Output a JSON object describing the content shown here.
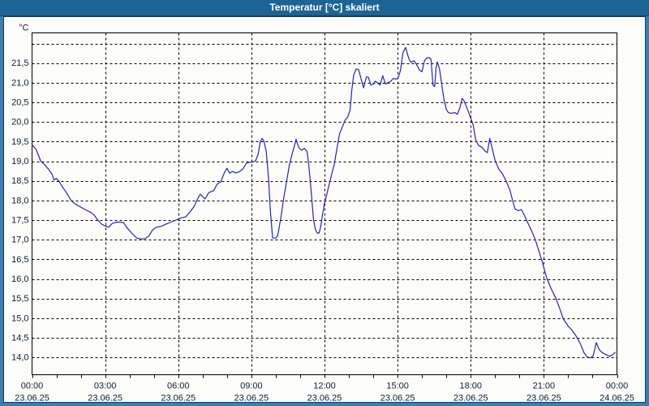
{
  "window": {
    "title": "Temperatur [°C] skaliert"
  },
  "colors": {
    "titlebar_bg": "#1D6496",
    "titlebar_text": "#FFFFFF",
    "frame_bg": "#3D7DB0",
    "frame_line": "#0F3E63",
    "panel_bg": "#FCFDF9",
    "plot_border": "#000000",
    "grid": "#000000",
    "label_text": "#0B1E33",
    "series_line": "#2424B4"
  },
  "chart_data": {
    "type": "line",
    "title": "Temperatur [°C] skaliert",
    "ylabel": "°C",
    "xlabel": "",
    "grid": "dashed",
    "legend": "none",
    "xlim_hours": [
      0,
      24
    ],
    "ylim": [
      13.56,
      22.27
    ],
    "y_ticks": [
      {
        "v": 22.0,
        "label": ""
      },
      {
        "v": 21.5,
        "label": "21,5"
      },
      {
        "v": 21.0,
        "label": "21,0"
      },
      {
        "v": 20.5,
        "label": "20,5"
      },
      {
        "v": 20.0,
        "label": "20,0"
      },
      {
        "v": 19.5,
        "label": "19,5"
      },
      {
        "v": 19.0,
        "label": "19,0"
      },
      {
        "v": 18.5,
        "label": "18,5"
      },
      {
        "v": 18.0,
        "label": "18,0"
      },
      {
        "v": 17.5,
        "label": "17,5"
      },
      {
        "v": 17.0,
        "label": "17,0"
      },
      {
        "v": 16.5,
        "label": "16,5"
      },
      {
        "v": 16.0,
        "label": "16,0"
      },
      {
        "v": 15.5,
        "label": "15,5"
      },
      {
        "v": 15.0,
        "label": "15,0"
      },
      {
        "v": 14.5,
        "label": "14,5"
      },
      {
        "v": 14.0,
        "label": "14,0"
      }
    ],
    "x_ticks": [
      {
        "h": 0,
        "time": "00:00",
        "date": "23.06.25"
      },
      {
        "h": 3,
        "time": "03:00",
        "date": "23.06.25"
      },
      {
        "h": 6,
        "time": "06:00",
        "date": "23.06.25"
      },
      {
        "h": 9,
        "time": "09:00",
        "date": "23.06.25"
      },
      {
        "h": 12,
        "time": "12:00",
        "date": "23.06.25"
      },
      {
        "h": 15,
        "time": "15:00",
        "date": "23.06.25"
      },
      {
        "h": 18,
        "time": "18:00",
        "date": "23.06.25"
      },
      {
        "h": 21,
        "time": "21:00",
        "date": "23.06.25"
      },
      {
        "h": 24,
        "time": "00:00",
        "date": "24.06.25"
      }
    ],
    "minor_tick_every_hours": 1,
    "series": [
      {
        "name": "Temperatur",
        "unit": "°C",
        "points": [
          [
            0,
            19.42
          ],
          [
            0.17,
            19.3
          ],
          [
            0.36,
            19.0
          ],
          [
            0.5,
            18.92
          ],
          [
            0.67,
            18.8
          ],
          [
            0.83,
            18.66
          ],
          [
            0.9,
            18.52
          ],
          [
            1.0,
            18.56
          ],
          [
            1.1,
            18.5
          ],
          [
            1.25,
            18.34
          ],
          [
            1.4,
            18.21
          ],
          [
            1.6,
            18.0
          ],
          [
            1.75,
            17.92
          ],
          [
            2.0,
            17.83
          ],
          [
            2.2,
            17.76
          ],
          [
            2.4,
            17.7
          ],
          [
            2.55,
            17.63
          ],
          [
            2.7,
            17.5
          ],
          [
            2.85,
            17.4
          ],
          [
            3.0,
            17.35
          ],
          [
            3.15,
            17.32
          ],
          [
            3.3,
            17.42
          ],
          [
            3.5,
            17.45
          ],
          [
            3.75,
            17.44
          ],
          [
            3.9,
            17.3
          ],
          [
            4.1,
            17.16
          ],
          [
            4.3,
            17.04
          ],
          [
            4.5,
            17.02
          ],
          [
            4.65,
            17.03
          ],
          [
            4.8,
            17.1
          ],
          [
            4.95,
            17.25
          ],
          [
            5.1,
            17.32
          ],
          [
            5.3,
            17.34
          ],
          [
            5.5,
            17.4
          ],
          [
            5.7,
            17.45
          ],
          [
            5.9,
            17.5
          ],
          [
            6.1,
            17.55
          ],
          [
            6.3,
            17.58
          ],
          [
            6.5,
            17.72
          ],
          [
            6.65,
            17.85
          ],
          [
            6.8,
            18.05
          ],
          [
            6.9,
            18.16
          ],
          [
            7.0,
            18.1
          ],
          [
            7.1,
            18.04
          ],
          [
            7.25,
            18.2
          ],
          [
            7.45,
            18.25
          ],
          [
            7.6,
            18.42
          ],
          [
            7.75,
            18.48
          ],
          [
            7.9,
            18.72
          ],
          [
            8.0,
            18.82
          ],
          [
            8.1,
            18.7
          ],
          [
            8.25,
            18.74
          ],
          [
            8.35,
            18.7
          ],
          [
            8.5,
            18.73
          ],
          [
            8.65,
            18.8
          ],
          [
            8.78,
            18.94
          ],
          [
            8.9,
            18.97
          ],
          [
            9.05,
            18.98
          ],
          [
            9.17,
            19.01
          ],
          [
            9.28,
            19.18
          ],
          [
            9.36,
            19.49
          ],
          [
            9.44,
            19.58
          ],
          [
            9.52,
            19.5
          ],
          [
            9.61,
            19.25
          ],
          [
            9.7,
            18.6
          ],
          [
            9.78,
            17.73
          ],
          [
            9.87,
            17.05
          ],
          [
            10.0,
            17.04
          ],
          [
            10.08,
            17.1
          ],
          [
            10.22,
            17.6
          ],
          [
            10.33,
            18.07
          ],
          [
            10.45,
            18.5
          ],
          [
            10.56,
            18.9
          ],
          [
            10.67,
            19.18
          ],
          [
            10.78,
            19.42
          ],
          [
            10.83,
            19.56
          ],
          [
            10.94,
            19.35
          ],
          [
            11.06,
            19.28
          ],
          [
            11.17,
            19.33
          ],
          [
            11.28,
            19.25
          ],
          [
            11.33,
            19.04
          ],
          [
            11.4,
            18.6
          ],
          [
            11.47,
            18.1
          ],
          [
            11.55,
            17.5
          ],
          [
            11.63,
            17.25
          ],
          [
            11.7,
            17.17
          ],
          [
            11.78,
            17.17
          ],
          [
            11.85,
            17.35
          ],
          [
            11.92,
            17.65
          ],
          [
            12.0,
            17.93
          ],
          [
            12.08,
            18.12
          ],
          [
            12.17,
            18.35
          ],
          [
            12.28,
            18.63
          ],
          [
            12.4,
            18.92
          ],
          [
            12.5,
            19.28
          ],
          [
            12.62,
            19.7
          ],
          [
            12.75,
            19.9
          ],
          [
            12.85,
            20.05
          ],
          [
            12.95,
            20.12
          ],
          [
            13.05,
            20.3
          ],
          [
            13.12,
            20.8
          ],
          [
            13.2,
            21.2
          ],
          [
            13.3,
            21.35
          ],
          [
            13.4,
            21.33
          ],
          [
            13.5,
            21.1
          ],
          [
            13.6,
            20.87
          ],
          [
            13.72,
            21.15
          ],
          [
            13.8,
            21.14
          ],
          [
            13.9,
            20.94
          ],
          [
            14.0,
            20.96
          ],
          [
            14.08,
            21.04
          ],
          [
            14.17,
            21.0
          ],
          [
            14.28,
            20.94
          ],
          [
            14.39,
            21.18
          ],
          [
            14.5,
            20.97
          ],
          [
            14.6,
            21.0
          ],
          [
            14.72,
            21.04
          ],
          [
            14.83,
            21.11
          ],
          [
            14.94,
            21.09
          ],
          [
            15.02,
            21.12
          ],
          [
            15.12,
            21.32
          ],
          [
            15.22,
            21.77
          ],
          [
            15.33,
            21.9
          ],
          [
            15.44,
            21.66
          ],
          [
            15.5,
            21.56
          ],
          [
            15.57,
            21.52
          ],
          [
            15.67,
            21.56
          ],
          [
            15.78,
            21.46
          ],
          [
            15.9,
            21.32
          ],
          [
            16.0,
            21.28
          ],
          [
            16.1,
            21.56
          ],
          [
            16.2,
            21.63
          ],
          [
            16.3,
            21.64
          ],
          [
            16.37,
            21.6
          ],
          [
            16.45,
            20.94
          ],
          [
            16.52,
            20.9
          ],
          [
            16.58,
            21.39
          ],
          [
            16.63,
            21.53
          ],
          [
            16.72,
            21.35
          ],
          [
            16.83,
            20.87
          ],
          [
            16.9,
            20.58
          ],
          [
            17.0,
            20.32
          ],
          [
            17.08,
            20.24
          ],
          [
            17.2,
            20.22
          ],
          [
            17.35,
            20.24
          ],
          [
            17.45,
            20.2
          ],
          [
            17.55,
            20.35
          ],
          [
            17.65,
            20.6
          ],
          [
            17.72,
            20.55
          ],
          [
            17.85,
            20.35
          ],
          [
            18.0,
            20.1
          ],
          [
            18.1,
            19.92
          ],
          [
            18.2,
            19.55
          ],
          [
            18.32,
            19.4
          ],
          [
            18.45,
            19.36
          ],
          [
            18.6,
            19.25
          ],
          [
            18.68,
            19.22
          ],
          [
            18.78,
            19.58
          ],
          [
            18.88,
            19.33
          ],
          [
            19.0,
            19.02
          ],
          [
            19.15,
            18.8
          ],
          [
            19.3,
            18.68
          ],
          [
            19.45,
            18.5
          ],
          [
            19.6,
            18.28
          ],
          [
            19.72,
            18.0
          ],
          [
            19.82,
            17.78
          ],
          [
            19.95,
            17.74
          ],
          [
            20.08,
            17.77
          ],
          [
            20.22,
            17.6
          ],
          [
            20.35,
            17.42
          ],
          [
            20.5,
            17.22
          ],
          [
            20.65,
            17.0
          ],
          [
            20.8,
            16.7
          ],
          [
            20.95,
            16.4
          ],
          [
            21.12,
            16.02
          ],
          [
            21.3,
            15.75
          ],
          [
            21.48,
            15.53
          ],
          [
            21.65,
            15.25
          ],
          [
            21.8,
            14.98
          ],
          [
            22.0,
            14.8
          ],
          [
            22.15,
            14.7
          ],
          [
            22.32,
            14.55
          ],
          [
            22.5,
            14.35
          ],
          [
            22.65,
            14.12
          ],
          [
            22.78,
            14.01
          ],
          [
            22.92,
            13.99
          ],
          [
            23.02,
            14.04
          ],
          [
            23.15,
            14.38
          ],
          [
            23.27,
            14.2
          ],
          [
            23.4,
            14.12
          ],
          [
            23.55,
            14.07
          ],
          [
            23.7,
            14.03
          ],
          [
            23.82,
            14.07
          ],
          [
            23.93,
            14.13
          ]
        ]
      }
    ]
  }
}
